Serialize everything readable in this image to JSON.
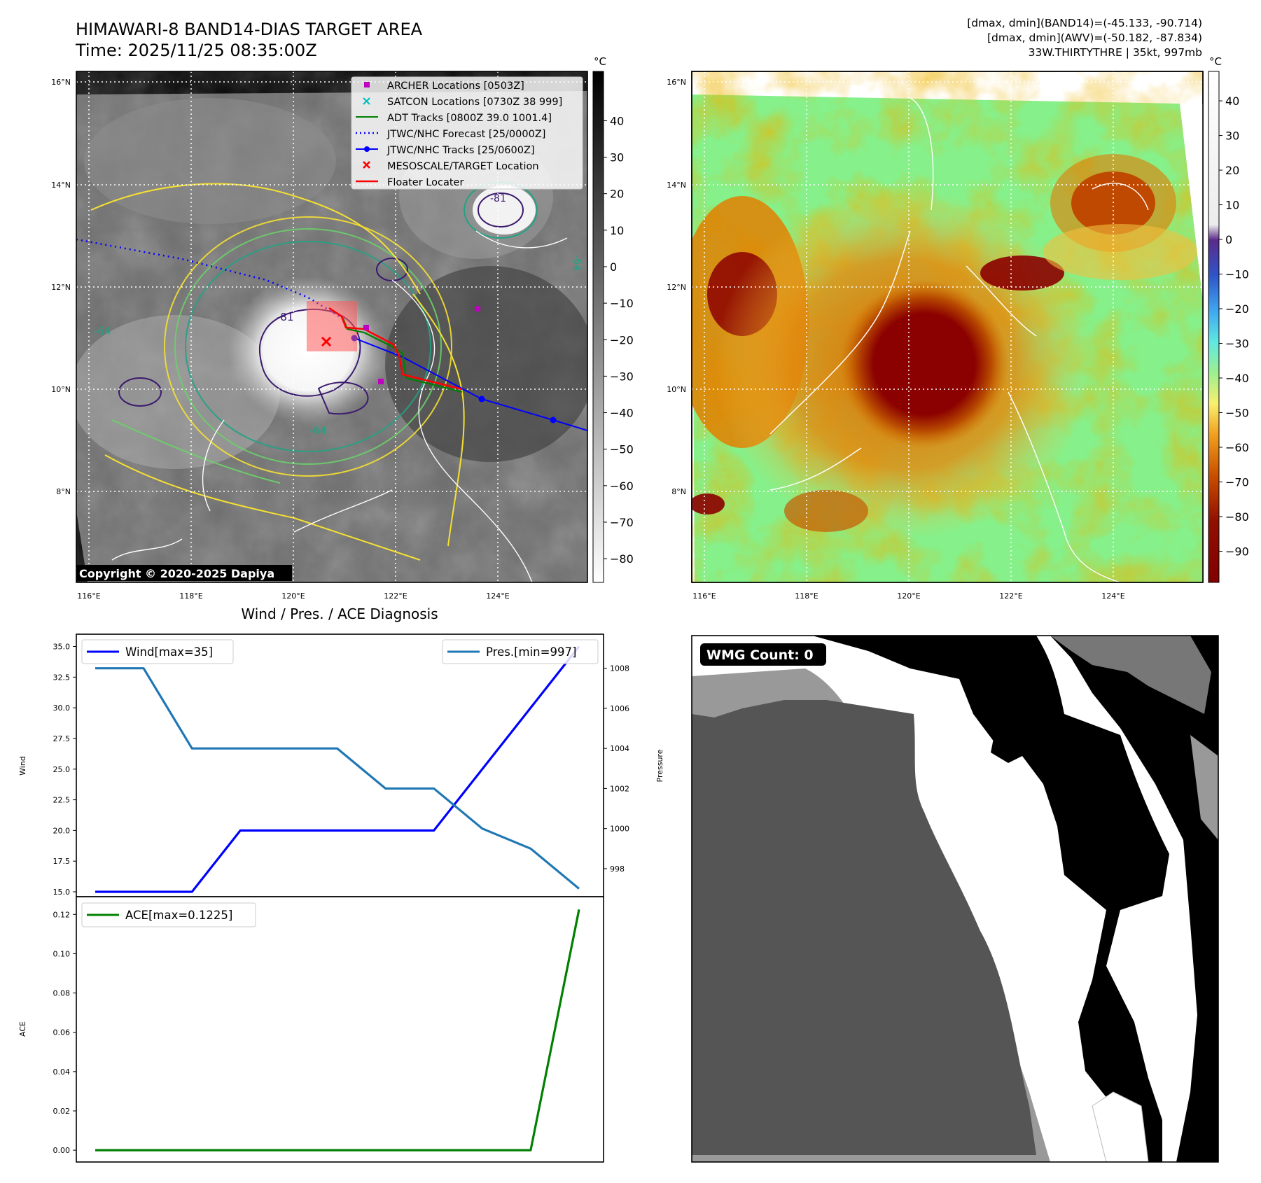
{
  "header": {
    "title": "HIMAWARI-8 BAND14-DIAS TARGET AREA",
    "time": "Time: 2025/11/25 08:35:00Z",
    "info_lines": [
      "[dmax, dmin](BAND14)=(-45.133, -90.714)",
      "[dmax, dmin](AWV)=(-50.182, -87.834)",
      "33W.THIRTYTHRE | 35kt, 997mb"
    ]
  },
  "maps": {
    "lat_labels": [
      "16°N",
      "14°N",
      "12°N",
      "10°N",
      "8°N"
    ],
    "lon_labels": [
      "116°E",
      "118°E",
      "120°E",
      "122°E",
      "124°E"
    ],
    "copyright": "Copyright © 2020-2025 Dapiya",
    "contour_labels": [
      "-64",
      "-64",
      "-81",
      "-81",
      "-64"
    ],
    "legend": [
      {
        "label": "ARCHER Locations [0503Z]",
        "color": "#c000c0",
        "marker": "square"
      },
      {
        "label": "SATCON Locations [0730Z 38 999]",
        "color": "#00bfbf",
        "marker": "x"
      },
      {
        "label": "ADT Tracks [0800Z 39.0 1001.4]",
        "color": "#008000",
        "marker": "line"
      },
      {
        "label": "JTWC/NHC Forecast [25/0000Z]",
        "color": "#0000ff",
        "marker": "dotted"
      },
      {
        "label": "JTWC/NHC Tracks [25/0600Z]",
        "color": "#0000ff",
        "marker": "line-dot"
      },
      {
        "label": "MESOSCALE/TARGET Location",
        "color": "#ff0000",
        "marker": "x"
      },
      {
        "label": "Floater Locater",
        "color": "#ff0000",
        "marker": "line"
      }
    ],
    "colorbar_left": {
      "unit": "°C",
      "ticks": [
        "40",
        "30",
        "20",
        "10",
        "0",
        "−10",
        "−20",
        "−30",
        "−40",
        "−50",
        "−60",
        "−70",
        "−80"
      ]
    },
    "colorbar_right": {
      "unit": "°C",
      "ticks": [
        "40",
        "30",
        "20",
        "10",
        "0",
        "−10",
        "−20",
        "−30",
        "−40",
        "−50",
        "−60",
        "−70",
        "−80",
        "−90"
      ]
    }
  },
  "wmg": {
    "badge": "WMG Count: 0"
  },
  "chart_data": [
    {
      "type": "line",
      "title": "Wind / Pres. / ACE Diagnosis",
      "ylabel": "Wind",
      "ylabel_right": "Pressure",
      "x": [
        0,
        1,
        2,
        3,
        4,
        5,
        6,
        7,
        8,
        9,
        10
      ],
      "series": [
        {
          "name": "Wind[max=35]",
          "axis": "left",
          "color": "#0000ff",
          "values": [
            15,
            15,
            15,
            20,
            20,
            20,
            20,
            20,
            25,
            30,
            35
          ]
        },
        {
          "name": "Pres.[min=997]",
          "axis": "right",
          "color": "#1f77b4",
          "values": [
            1008,
            1008,
            1004,
            1004,
            1004,
            1004,
            1002,
            1002,
            1000,
            999,
            997
          ]
        }
      ],
      "ylim": [
        14.6,
        36
      ],
      "ylim_right": [
        996.6,
        1009.7
      ],
      "yticks": [
        "15.0",
        "17.5",
        "20.0",
        "22.5",
        "25.0",
        "27.5",
        "30.0",
        "32.5",
        "35.0"
      ],
      "yticks_right": [
        "998",
        "1000",
        "1002",
        "1004",
        "1006",
        "1008"
      ]
    },
    {
      "type": "line",
      "ylabel": "ACE",
      "x": [
        0,
        1,
        2,
        3,
        4,
        5,
        6,
        7,
        8,
        9,
        10
      ],
      "series": [
        {
          "name": "ACE[max=0.1225]",
          "color": "#008000",
          "values": [
            0,
            0,
            0,
            0,
            0,
            0,
            0,
            0,
            0,
            0,
            0.1225
          ]
        }
      ],
      "ylim": [
        -0.006,
        0.129
      ],
      "yticks": [
        "0.00",
        "0.02",
        "0.04",
        "0.06",
        "0.08",
        "0.10",
        "0.12"
      ]
    }
  ]
}
